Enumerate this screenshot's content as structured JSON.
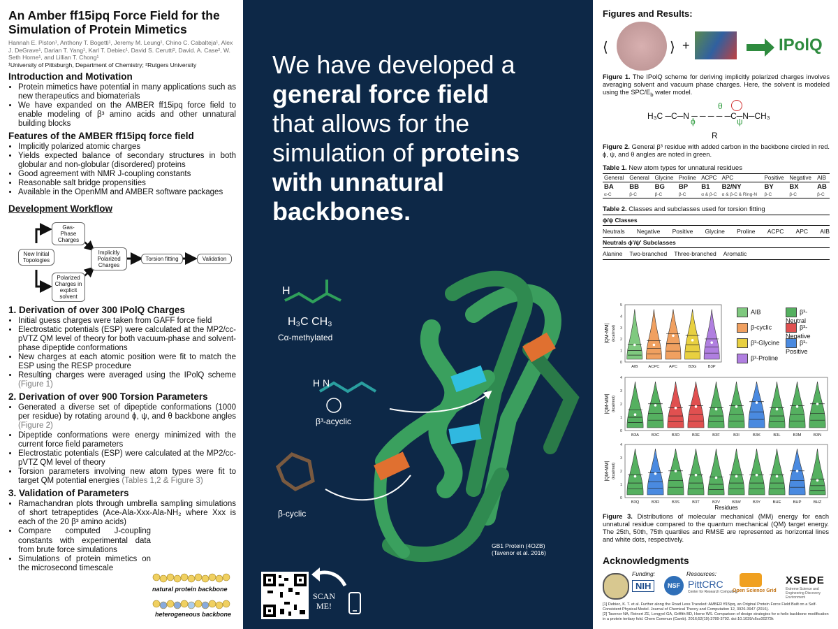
{
  "title": "An Amber ff15ipq Force Field for the Simulation of Protein Mimetics",
  "authors": "Hannah E. Piston¹, Anthony T. Bogetti¹, Jeremy M. Leung¹, Chino C. Cabalteja¹, Alex J. DeGrave¹, Darian T. Yang¹, Karl T. Debiec¹, David S. Cerutti², David. A. Case², W. Seth Horne¹, and Lillian T. Chong¹",
  "affiliation": "¹University of Pittsburgh, Department of Chemistry; ²Rutgers University",
  "intro": {
    "heading": "Introduction and Motivation",
    "bullets": [
      "Protein mimetics have potential in many applications such as new therapeutics and biomaterials",
      "We have expanded on the AMBER ff15ipq force field to enable modeling of β³ amino acids and other unnatural building blocks"
    ]
  },
  "features": {
    "heading": "Features of the AMBER ff15ipq force field",
    "bullets": [
      "Implicitly polarized atomic charges",
      "Yields expected balance of secondary structures in both globular and non-globular (disordered) proteins",
      "Good agreement with NMR J-coupling constants",
      "Reasonable salt bridge propensities",
      "Available in the OpenMM and AMBER software packages"
    ]
  },
  "workflow": {
    "heading": "Development Workflow",
    "boxes": [
      "New Initial Topologies",
      "Gas-Phase Charges",
      "Polarized Charges in explicit solvent",
      "Implicitly Polarized Charges",
      "Torsion fitting",
      "Validation"
    ]
  },
  "sec1": {
    "heading": "1. Derivation of over 300 IPolQ Charges",
    "bullets": [
      "Initial guess charges were taken from GAFF force field",
      "Electrostatic potentials (ESP) were calculated at the MP2/cc-pVTZ QM level of theory for both vacuum-phase and solvent-phase dipeptide conformations",
      "New charges at each atomic position were fit to match the ESP using the RESP procedure",
      "Resulting charges were averaged using the IPolQ scheme"
    ],
    "ref": "(Figure 1)"
  },
  "sec2": {
    "heading": "2. Derivation of over 900 Torsion Parameters",
    "bullets": [
      "Generated a diverse set of dipeptide conformations (1000 per residue) by rotating around ϕ, ψ, and θ backbone angles",
      "Dipeptide conformations were energy minimized with the current force field parameters",
      "Electrostatic potentials (ESP) were calculated at the MP2/cc-pVTZ QM level of theory",
      "Torsion parameters involving new atom types were fit to target QM potential energies"
    ],
    "ref1": "(Figure 2)",
    "ref4": "(Tables 1,2 & Figure 3)"
  },
  "sec3": {
    "heading": "3. Validation of Parameters",
    "bullets": [
      "Ramachandran plots through umbrella sampling simulations of short tetrapeptides (Ace-Ala-Xxx-Ala-NH₂ where Xxx is each of the 20 β³ amino acids)",
      "Compare computed J-coupling constants with experimental data from brute force simulations",
      "Simulations of protein mimetics on the microsecond timescale"
    ],
    "natural_label": "natural protein backbone",
    "hetero_label": "heterogeneous backbone"
  },
  "center": {
    "headline_1": "We have developed a",
    "headline_2": "general force field",
    "headline_3": "that allows for the",
    "headline_4": "simulation of",
    "headline_5": "proteins",
    "headline_6": "with unnatural",
    "headline_7": "backbones.",
    "calpha_label": "Cα-methylated",
    "b3acyclic_label": "β³-acyclic",
    "bcyclic_label": "β-cyclic",
    "protein_caption_1": "GB1 Protein (4OZB)",
    "protein_caption_2": "(Tavenor et al. 2016)",
    "scan_1": "SCAN",
    "scan_2": "ME!"
  },
  "right": {
    "heading": "Figures and Results:",
    "ipolq": "IPolQ",
    "fig1_label": "Figure 1.",
    "fig1_caption": "The IPolQ scheme for deriving implicitly polarized charges involves averaging solvent and vacuum phase charges. Here, the solvent is modeled using the SPC/E",
    "fig1_sub": "b",
    "fig1_tail": " water model.",
    "fig2_label": "Figure 2.",
    "fig2_caption": "General β³ residue with added carbon in the backbone circled in red. ϕ, ψ, and θ angles are noted in green.",
    "table1_title_b": "Table 1.",
    "table1_title": " New atom types for unnatural residues",
    "table1_head": [
      "General",
      "General",
      "Glycine",
      "Proline",
      "ACPC",
      "APC",
      "Positive",
      "Negative",
      "AIB"
    ],
    "table1_codes": [
      "BA",
      "BB",
      "BG",
      "BP",
      "B1",
      "B2/NY",
      "BY",
      "BX",
      "AB"
    ],
    "table1_desc": [
      "α-C",
      "β-C",
      "β-C",
      "β-C",
      "α & β-C",
      "α & β-C & Ring-N",
      "β-C",
      "β-C",
      "β-C"
    ],
    "table2_title_b": "Table 2.",
    "table2_title": " Classes and subclasses used for torsion fitting",
    "phipsi_head": "ϕ/ψ Classes",
    "phipsi": [
      "Neutrals",
      "Negative",
      "Positive",
      "Glycine",
      "Proline",
      "ACPC",
      "APC",
      "AIB"
    ],
    "sub_head": "Neutrals ϕ'/ψ' Subclasses",
    "subs": [
      "Alanine",
      "Two-branched",
      "Three-branched",
      "Aromatic"
    ],
    "ylabel": "|QM-MM|",
    "yunit": "(kcal/mol)",
    "xlabel": "Residues",
    "legend": [
      "AIB",
      "β-cyclic",
      "β³-Glycine",
      "β³-Proline",
      "β³-Neutral",
      "β³-Negative",
      "β³-Positive"
    ],
    "fig3_label": "Figure 3.",
    "fig3_caption": "Distributions of molecular mechanical (MM) energy for each unnatural residue compared to the quantum mechanical (QM) target energy. The 25th, 50th, 75th quartiles and RMSE are represented as horizontal lines and white dots, respectively.",
    "ack_heading": "Acknowledgments",
    "funding": "Funding:",
    "resources": "Resources:",
    "nih": "NIH",
    "nsf": "NSF",
    "pittcrc": "PittCRC",
    "pittcrc_sub": "Center for Research Computing",
    "osg": "Open Science Grid",
    "xsede": "XSEDE",
    "xsede_sub": "Extreme Science and Engineering Discovery Environment",
    "ref1": "[1] Debiec, K. T. et al. Further along the Road Less Traveled: AMBER ff15ipq, an Original Protein Force Field Built on a Self-Consistent Physical Model. Journal of Chemical Theory and Computation 12, 3926-3947 (2016).",
    "ref2": "[2] Tavenor NA, Reinert ZE, Lengyel GA, Griffith BD, Horne WS. Comparison of design strategies for α-helix backbone modification in a protein tertiary fold. Chem Commun (Camb). 2016;52(19):3789-3792. doi:10.1039/c6cc00273k"
  },
  "chart_data": [
    {
      "type": "violin",
      "ylabel": "|QM-MM| (kcal/mol)",
      "ylim": [
        0,
        5
      ],
      "categories": [
        "AIB",
        "ACPC",
        "APC",
        "B3G",
        "B3P"
      ],
      "colors": [
        "#7fc97f",
        "#f0a060",
        "#f0a060",
        "#e8d040",
        "#b07fe0"
      ],
      "rmse": [
        1.5,
        1.5,
        2.3,
        1.9,
        1.7
      ],
      "median": [
        1.0,
        1.2,
        1.6,
        1.5,
        1.3
      ]
    },
    {
      "type": "violin",
      "ylabel": "|QM-MM| (kcal/mol)",
      "ylim": [
        0,
        4
      ],
      "categories": [
        "B3A",
        "B3C",
        "B3D",
        "B3E",
        "B3F",
        "B3I",
        "B3K",
        "B3L",
        "B3M",
        "B3N"
      ],
      "colors": [
        "#55b060",
        "#55b060",
        "#e05050",
        "#e05050",
        "#55b060",
        "#55b060",
        "#4a8ae0",
        "#55b060",
        "#55b060",
        "#55b060"
      ],
      "rmse": [
        1.2,
        1.9,
        1.7,
        1.8,
        1.6,
        1.8,
        2.1,
        1.6,
        1.8,
        2.0
      ],
      "median": [
        1.0,
        1.3,
        1.1,
        1.2,
        1.1,
        1.2,
        1.4,
        1.1,
        1.2,
        1.3
      ]
    },
    {
      "type": "violin",
      "ylabel": "|QM-MM| (kcal/mol)",
      "xlabel": "Residues",
      "ylim": [
        0,
        4
      ],
      "categories": [
        "B3Q",
        "B3R",
        "B3S",
        "B3T",
        "B3V",
        "B3W",
        "B3Y",
        "BHE",
        "BHP",
        "BHZ"
      ],
      "colors": [
        "#55b060",
        "#4a8ae0",
        "#55b060",
        "#55b060",
        "#55b060",
        "#55b060",
        "#55b060",
        "#55b060",
        "#4a8ae0",
        "#55b060"
      ],
      "rmse": [
        1.6,
        1.8,
        2.0,
        1.7,
        1.5,
        1.6,
        1.7,
        1.6,
        2.0,
        1.3
      ],
      "median": [
        1.1,
        1.2,
        1.3,
        1.1,
        1.0,
        1.1,
        1.1,
        1.1,
        1.3,
        0.9
      ]
    }
  ]
}
